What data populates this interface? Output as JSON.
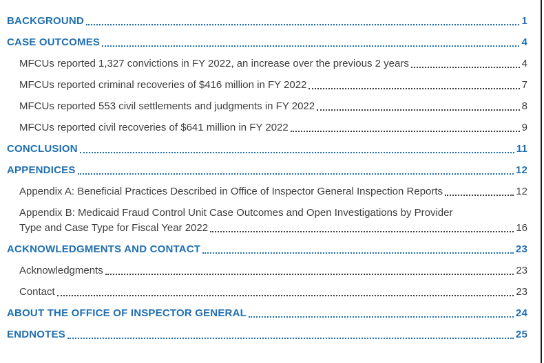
{
  "colors": {
    "heading_blue": "#1E6FB2",
    "body_text": "#3D3D3D",
    "page_edge_line": "#1A1A1A",
    "background": "#FFFFFF"
  },
  "toc": {
    "entries": [
      {
        "level": 1,
        "label": "BACKGROUND",
        "page": "1"
      },
      {
        "level": 1,
        "label": "CASE OUTCOMES",
        "page": "4"
      },
      {
        "level": 2,
        "label": "MFCUs reported 1,327 convictions in FY 2022, an increase over the previous 2 years",
        "page": "4"
      },
      {
        "level": 2,
        "label": "MFCUs reported criminal recoveries of $416 million in FY 2022",
        "page": "7"
      },
      {
        "level": 2,
        "label": "MFCUs reported 553 civil settlements and judgments in FY 2022",
        "page": "8"
      },
      {
        "level": 2,
        "label": "MFCUs reported civil recoveries of $641 million in FY 2022",
        "page": "9"
      },
      {
        "level": 1,
        "label": "CONCLUSION",
        "page": "11"
      },
      {
        "level": 1,
        "label": "APPENDICES",
        "page": "12"
      },
      {
        "level": 2,
        "label": "Appendix A: Beneficial Practices Described in Office of Inspector General Inspection Reports",
        "page": "12"
      },
      {
        "level": 2,
        "label": "Appendix B: Medicaid Fraud Control Unit Case Outcomes and Open Investigations by Provider",
        "page": "",
        "leader": false,
        "wrap_first": true
      },
      {
        "level": 2,
        "label": "Type and Case Type for Fiscal Year 2022",
        "page": "16"
      },
      {
        "level": 1,
        "label": "ACKNOWLEDGMENTS AND CONTACT",
        "page": "23"
      },
      {
        "level": 2,
        "label": "Acknowledgments",
        "page": "23"
      },
      {
        "level": 2,
        "label": "Contact",
        "page": "23"
      },
      {
        "level": 1,
        "label": "ABOUT THE OFFICE OF INSPECTOR GENERAL",
        "page": "24"
      },
      {
        "level": 1,
        "label": "ENDNOTES",
        "page": "25"
      }
    ]
  }
}
